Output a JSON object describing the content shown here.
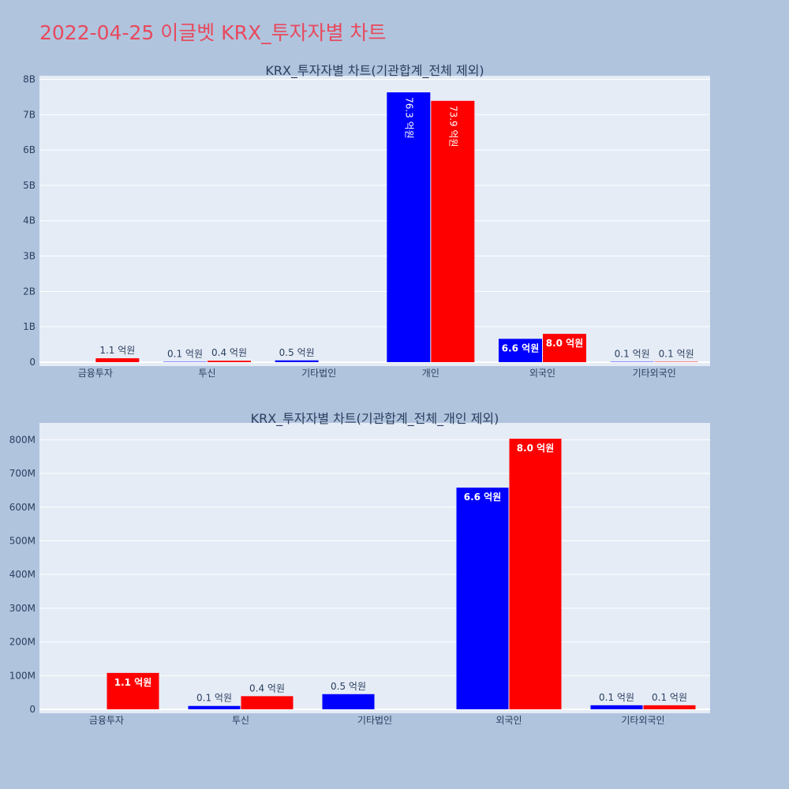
{
  "page_title": "2022-04-25 이글벳 KRX_투자자별 차트",
  "colors": {
    "background": "#b0c4de",
    "plot_bg": "#e5ecf6",
    "title": "#e8495c",
    "series_1": "#0000ff",
    "series_2": "#ff0000"
  },
  "chart_data": [
    {
      "type": "bar",
      "title": "KRX_투자자별 차트(기관합계_전체 제외)",
      "categories": [
        "금융투자",
        "투신",
        "기타법인",
        "개인",
        "외국인",
        "기타외국인"
      ],
      "series": [
        {
          "color": "#0000ff",
          "values": [
            0,
            10000000,
            50000000,
            7630000000,
            660000000,
            10000000
          ],
          "labels": [
            "",
            "0.1 억원",
            "0.5 억원",
            "76.3 억원",
            "6.6 억원",
            "0.1 억원"
          ]
        },
        {
          "color": "#ff0000",
          "values": [
            110000000,
            40000000,
            0,
            7390000000,
            800000000,
            10000000
          ],
          "labels": [
            "1.1 억원",
            "0.4 억원",
            "",
            "73.9 억원",
            "8.0 억원",
            "0.1 억원"
          ]
        }
      ],
      "ylim": [
        0,
        8100000000
      ],
      "yticks": [
        0,
        1000000000,
        2000000000,
        3000000000,
        4000000000,
        5000000000,
        6000000000,
        7000000000,
        8000000000
      ],
      "ytick_labels": [
        "0",
        "1B",
        "2B",
        "3B",
        "4B",
        "5B",
        "6B",
        "7B",
        "8B"
      ],
      "grid": true
    },
    {
      "type": "bar",
      "title": "KRX_투자자별 차트(기관합계_전체_개인 제외)",
      "categories": [
        "금융투자",
        "투신",
        "기타법인",
        "외국인",
        "기타외국인"
      ],
      "series": [
        {
          "color": "#0000ff",
          "values": [
            0,
            10000000,
            45000000,
            658000000,
            12000000
          ],
          "labels": [
            "",
            "0.1 억원",
            "0.5 억원",
            "6.6 억원",
            "0.1 억원"
          ]
        },
        {
          "color": "#ff0000",
          "values": [
            108000000,
            39000000,
            0,
            803000000,
            12000000
          ],
          "labels": [
            "1.1 억원",
            "0.4 억원",
            "",
            "8.0 억원",
            "0.1 억원"
          ]
        }
      ],
      "ylim": [
        0,
        850000000
      ],
      "yticks": [
        0,
        100000000,
        200000000,
        300000000,
        400000000,
        500000000,
        600000000,
        700000000,
        800000000
      ],
      "ytick_labels": [
        "0",
        "100M",
        "200M",
        "300M",
        "400M",
        "500M",
        "600M",
        "700M",
        "800M"
      ],
      "grid": true
    }
  ]
}
